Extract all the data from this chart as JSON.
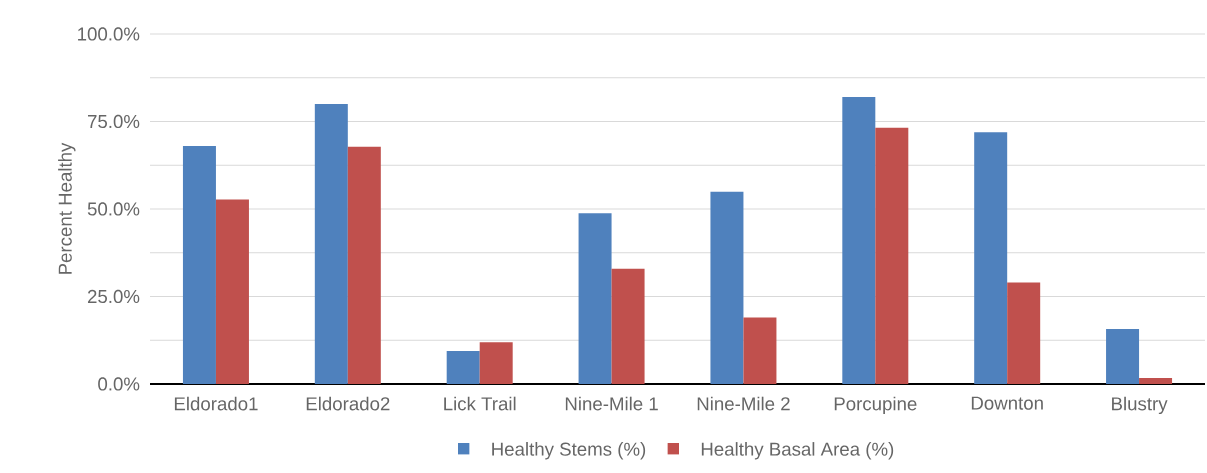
{
  "chart_data": {
    "type": "bar",
    "ylabel": "Percent Healthy",
    "categories": [
      "Eldorado1",
      "Eldorado2",
      "Lick Trail",
      "Nine-Mile 1",
      "Nine-Mile 2",
      "Porcupine",
      "Downton",
      "Blustry"
    ],
    "series": [
      {
        "name": "Healthy Stems (%)",
        "color": "#4f81bd",
        "values": [
          68,
          80,
          9.4,
          48.8,
          54.9,
          82,
          71.9,
          15.7
        ]
      },
      {
        "name": "Healthy Basal Area (%)",
        "color": "#c0504d",
        "values": [
          52.7,
          67.8,
          11.9,
          32.9,
          19,
          73.2,
          29,
          1.7
        ]
      }
    ],
    "ylim": [
      0,
      100
    ],
    "yticks": [
      {
        "value": 0,
        "label": "0.0%"
      },
      {
        "value": 12.5,
        "label": null
      },
      {
        "value": 25,
        "label": "25.0%"
      },
      {
        "value": 37.5,
        "label": null
      },
      {
        "value": 50,
        "label": "50.0%"
      },
      {
        "value": 62.5,
        "label": null
      },
      {
        "value": 75,
        "label": "75.0%"
      },
      {
        "value": 87.5,
        "label": null
      },
      {
        "value": 100,
        "label": "100.0%"
      }
    ],
    "grid": "y",
    "legend": "bottom"
  }
}
